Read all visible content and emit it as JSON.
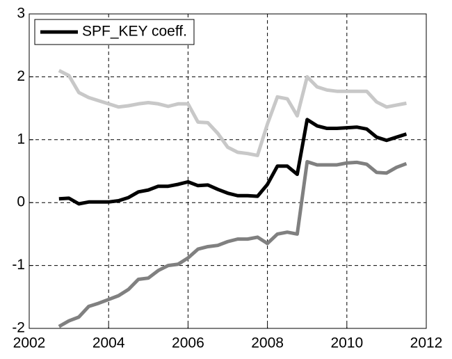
{
  "chart_data": {
    "type": "line",
    "x": [
      2002.75,
      2003,
      2003.25,
      2003.5,
      2003.75,
      2004,
      2004.25,
      2004.5,
      2004.75,
      2005,
      2005.25,
      2005.5,
      2005.75,
      2006,
      2006.25,
      2006.5,
      2006.75,
      2007,
      2007.25,
      2007.5,
      2007.75,
      2008,
      2008.25,
      2008.5,
      2008.75,
      2009,
      2009.25,
      2009.5,
      2009.75,
      2010,
      2010.25,
      2010.5,
      2010.75,
      2011,
      2011.25,
      2011.5
    ],
    "series": [
      {
        "color": "#c8c8c8",
        "values": [
          2.1,
          2.02,
          1.75,
          1.67,
          1.62,
          1.57,
          1.52,
          1.54,
          1.57,
          1.59,
          1.57,
          1.53,
          1.57,
          1.57,
          1.28,
          1.27,
          1.1,
          0.88,
          0.8,
          0.78,
          0.75,
          1.25,
          1.68,
          1.65,
          1.38,
          2.0,
          1.84,
          1.79,
          1.77,
          1.77,
          1.77,
          1.77,
          1.6,
          1.52,
          1.55,
          1.58
        ]
      },
      {
        "color": "#808080",
        "values": [
          -1.97,
          -1.88,
          -1.82,
          -1.65,
          -1.6,
          -1.54,
          -1.48,
          -1.38,
          -1.22,
          -1.2,
          -1.08,
          -1.0,
          -0.98,
          -0.88,
          -0.74,
          -0.7,
          -0.68,
          -0.62,
          -0.58,
          -0.58,
          -0.55,
          -0.65,
          -0.5,
          -0.47,
          -0.5,
          0.65,
          0.6,
          0.6,
          0.6,
          0.63,
          0.64,
          0.61,
          0.48,
          0.47,
          0.56,
          0.62
        ]
      },
      {
        "name": "SPF_KEY coeff.",
        "color": "#000000",
        "values": [
          0.06,
          0.07,
          -0.02,
          0.01,
          0.01,
          0.01,
          0.03,
          0.08,
          0.17,
          0.2,
          0.26,
          0.26,
          0.29,
          0.33,
          0.27,
          0.28,
          0.21,
          0.15,
          0.11,
          0.11,
          0.1,
          0.29,
          0.58,
          0.58,
          0.45,
          1.32,
          1.22,
          1.18,
          1.18,
          1.19,
          1.2,
          1.17,
          1.04,
          0.99,
          1.04,
          1.09
        ]
      }
    ],
    "xlim": [
      2002,
      2012
    ],
    "xticks": [
      2002,
      2004,
      2006,
      2008,
      2010,
      2012
    ],
    "ylim": [
      -2,
      3
    ],
    "yticks": [
      -2,
      -1,
      0,
      1,
      2,
      3
    ],
    "grid": true,
    "legend": "upper-left"
  }
}
